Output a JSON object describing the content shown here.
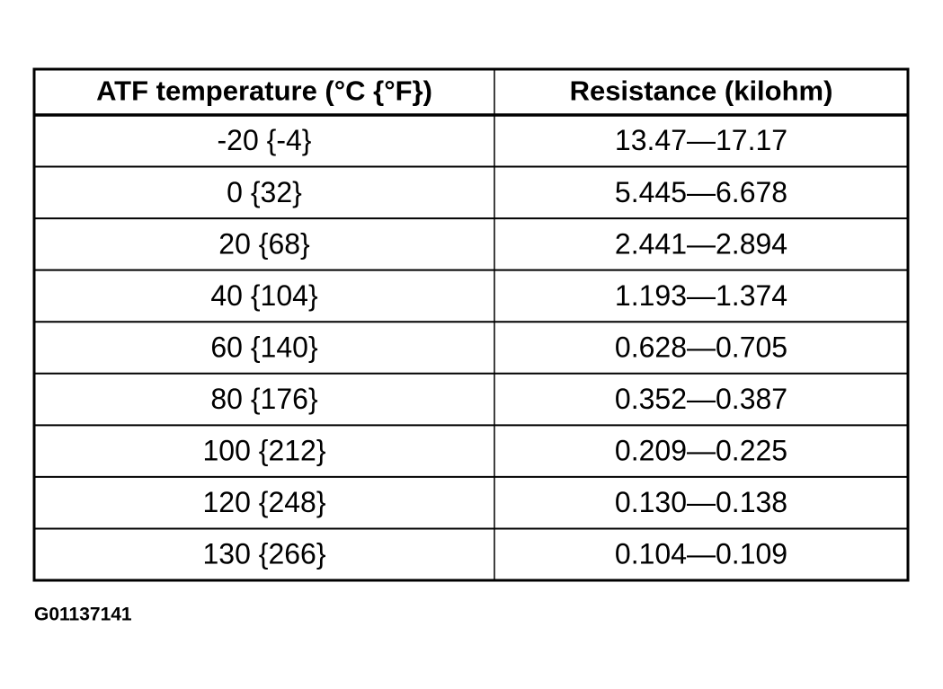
{
  "table": {
    "header": [
      "ATF temperature (°C {°F})",
      "Resistance (kilohm)"
    ],
    "rows": [
      [
        "-20 {-4}",
        "13.47—17.17"
      ],
      [
        "0 {32}",
        "5.445—6.678"
      ],
      [
        "20 {68}",
        "2.441—2.894"
      ],
      [
        "40 {104}",
        "1.193—1.374"
      ],
      [
        "60 {140}",
        "0.628—0.705"
      ],
      [
        "80 {176}",
        "0.352—0.387"
      ],
      [
        "100 {212}",
        "0.209—0.225"
      ],
      [
        "120 {248}",
        "0.130—0.138"
      ],
      [
        "130 {266}",
        "0.104—0.109"
      ]
    ]
  },
  "figure_id": "G01137141"
}
